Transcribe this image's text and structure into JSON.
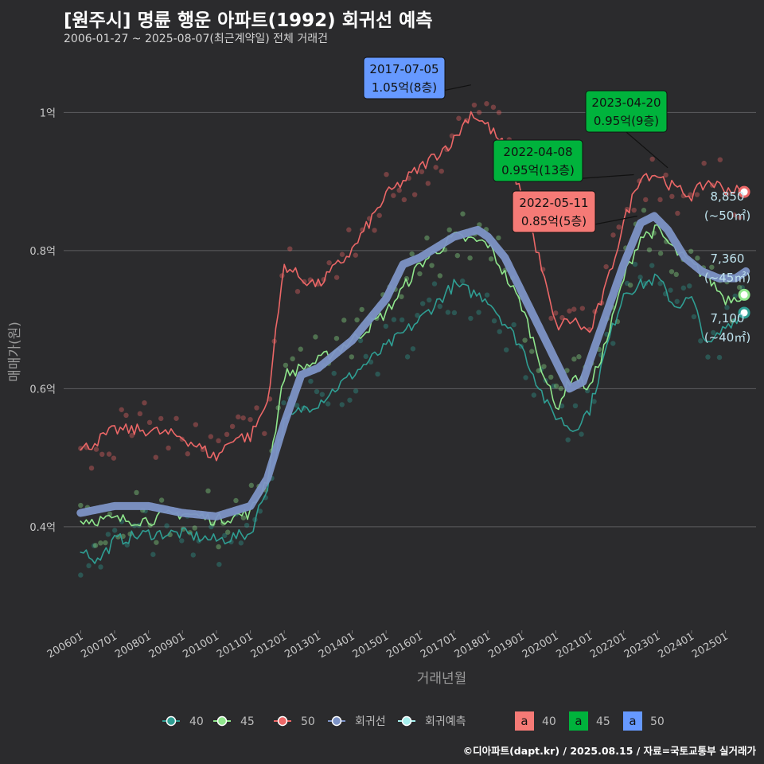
{
  "title": "[원주시] 명륜 행운 아파트(1992) 회귀선 예측",
  "subtitle": "2006-01-27 ~ 2025-08-07(최근계약일) 전체 거래건",
  "footer": "©디아파트(dapt.kr) / 2025.08.15 / 자료=국토교통부 실거래가",
  "chart_data": {
    "type": "line",
    "xlabel": "거래년월",
    "ylabel": "매매가(원)",
    "x_ticks": [
      "200601",
      "200701",
      "200801",
      "200901",
      "201001",
      "201101",
      "201201",
      "201301",
      "201401",
      "201501",
      "201601",
      "201701",
      "201801",
      "201901",
      "202001",
      "202101",
      "202201",
      "202301",
      "202401",
      "202501"
    ],
    "y_ticks": [
      "0.4억",
      "0.6억",
      "0.8억",
      "1억"
    ],
    "ylim": [
      0.25,
      1.08
    ],
    "xlim": [
      2005.5,
      2025.9
    ],
    "colors": {
      "s40": "#2f9e93",
      "s45": "#8fe68c",
      "s50": "#ec6767",
      "reg": "#7d93c6",
      "pred": "#a7f0ee"
    },
    "series": [
      {
        "name": "40",
        "color": "#2f9e93",
        "points": [
          [
            2006.0,
            0.37
          ],
          [
            2006.5,
            0.35
          ],
          [
            2007.0,
            0.38
          ],
          [
            2008.0,
            0.39
          ],
          [
            2009.0,
            0.39
          ],
          [
            2010.0,
            0.38
          ],
          [
            2011.0,
            0.39
          ],
          [
            2011.5,
            0.46
          ],
          [
            2012.0,
            0.55
          ],
          [
            2012.5,
            0.57
          ],
          [
            2013.0,
            0.58
          ],
          [
            2014.0,
            0.62
          ],
          [
            2015.0,
            0.66
          ],
          [
            2016.0,
            0.7
          ],
          [
            2017.0,
            0.75
          ],
          [
            2018.0,
            0.73
          ],
          [
            2019.0,
            0.66
          ],
          [
            2019.8,
            0.57
          ],
          [
            2020.5,
            0.54
          ],
          [
            2021.0,
            0.57
          ],
          [
            2021.5,
            0.66
          ],
          [
            2022.0,
            0.74
          ],
          [
            2023.0,
            0.76
          ],
          [
            2023.5,
            0.72
          ],
          [
            2024.0,
            0.73
          ],
          [
            2024.5,
            0.66
          ],
          [
            2025.0,
            0.69
          ],
          [
            2025.5,
            0.71
          ]
        ]
      },
      {
        "name": "45",
        "color": "#8fe68c",
        "points": [
          [
            2006.0,
            0.41
          ],
          [
            2007.0,
            0.41
          ],
          [
            2008.0,
            0.41
          ],
          [
            2009.0,
            0.42
          ],
          [
            2010.0,
            0.41
          ],
          [
            2011.0,
            0.42
          ],
          [
            2011.5,
            0.47
          ],
          [
            2012.0,
            0.62
          ],
          [
            2012.5,
            0.63
          ],
          [
            2013.0,
            0.64
          ],
          [
            2014.0,
            0.67
          ],
          [
            2015.0,
            0.71
          ],
          [
            2016.0,
            0.78
          ],
          [
            2016.5,
            0.8
          ],
          [
            2017.0,
            0.82
          ],
          [
            2018.0,
            0.81
          ],
          [
            2019.0,
            0.72
          ],
          [
            2020.0,
            0.57
          ],
          [
            2020.5,
            0.62
          ],
          [
            2021.0,
            0.6
          ],
          [
            2021.5,
            0.67
          ],
          [
            2022.0,
            0.76
          ],
          [
            2022.5,
            0.82
          ],
          [
            2023.0,
            0.83
          ],
          [
            2023.5,
            0.8
          ],
          [
            2024.0,
            0.78
          ],
          [
            2024.5,
            0.76
          ],
          [
            2025.0,
            0.73
          ],
          [
            2025.5,
            0.736
          ]
        ]
      },
      {
        "name": "50",
        "color": "#ec6767",
        "points": [
          [
            2006.0,
            0.51
          ],
          [
            2007.0,
            0.54
          ],
          [
            2008.0,
            0.54
          ],
          [
            2009.0,
            0.53
          ],
          [
            2010.0,
            0.5
          ],
          [
            2010.5,
            0.53
          ],
          [
            2011.0,
            0.53
          ],
          [
            2011.5,
            0.58
          ],
          [
            2012.0,
            0.78
          ],
          [
            2012.5,
            0.76
          ],
          [
            2013.0,
            0.75
          ],
          [
            2014.0,
            0.8
          ],
          [
            2015.0,
            0.88
          ],
          [
            2016.0,
            0.92
          ],
          [
            2017.0,
            0.96
          ],
          [
            2017.5,
            1.0
          ],
          [
            2018.0,
            0.98
          ],
          [
            2018.5,
            0.95
          ],
          [
            2019.0,
            0.88
          ],
          [
            2019.5,
            0.79
          ],
          [
            2020.0,
            0.69
          ],
          [
            2020.5,
            0.7
          ],
          [
            2021.0,
            0.68
          ],
          [
            2021.5,
            0.75
          ],
          [
            2022.0,
            0.84
          ],
          [
            2022.5,
            0.91
          ],
          [
            2023.0,
            0.91
          ],
          [
            2023.5,
            0.89
          ],
          [
            2024.0,
            0.88
          ],
          [
            2024.5,
            0.9
          ],
          [
            2025.0,
            0.89
          ],
          [
            2025.5,
            0.885
          ]
        ]
      },
      {
        "name": "회귀선",
        "color": "#7d93c6",
        "points": [
          [
            2006.0,
            0.42
          ],
          [
            2007.0,
            0.43
          ],
          [
            2008.0,
            0.43
          ],
          [
            2009.0,
            0.42
          ],
          [
            2010.0,
            0.415
          ],
          [
            2011.0,
            0.43
          ],
          [
            2011.5,
            0.47
          ],
          [
            2012.0,
            0.55
          ],
          [
            2012.5,
            0.62
          ],
          [
            2013.0,
            0.63
          ],
          [
            2014.0,
            0.67
          ],
          [
            2015.0,
            0.73
          ],
          [
            2015.5,
            0.78
          ],
          [
            2016.0,
            0.79
          ],
          [
            2017.0,
            0.82
          ],
          [
            2017.7,
            0.83
          ],
          [
            2018.0,
            0.82
          ],
          [
            2018.5,
            0.79
          ],
          [
            2019.0,
            0.74
          ],
          [
            2019.5,
            0.69
          ],
          [
            2020.0,
            0.64
          ],
          [
            2020.4,
            0.6
          ],
          [
            2020.8,
            0.61
          ],
          [
            2021.0,
            0.64
          ],
          [
            2021.5,
            0.71
          ],
          [
            2022.0,
            0.78
          ],
          [
            2022.5,
            0.84
          ],
          [
            2022.9,
            0.85
          ],
          [
            2023.3,
            0.83
          ],
          [
            2023.8,
            0.79
          ],
          [
            2024.3,
            0.77
          ],
          [
            2024.8,
            0.76
          ],
          [
            2025.3,
            0.76
          ],
          [
            2025.6,
            0.77
          ]
        ]
      }
    ],
    "end_labels": [
      {
        "value": "8,850",
        "sub": "(~50㎡)",
        "y": 0.885,
        "color": "#ec6767"
      },
      {
        "value": "7,360",
        "sub": "(~45㎡)",
        "y": 0.736,
        "color": "#8fe68c"
      },
      {
        "value": "7,100",
        "sub": "(~40㎡)",
        "y": 0.71,
        "color": "#2f9e93"
      }
    ],
    "annotations": [
      {
        "date": "2017-07-05",
        "price": "1.05억(8층)",
        "color": "#6699ff"
      },
      {
        "date": "2023-04-20",
        "price": "0.95억(9층)",
        "color": "#00b33c"
      },
      {
        "date": "2022-04-08",
        "price": "0.95억(13층)",
        "color": "#00b33c"
      },
      {
        "date": "2022-05-11",
        "price": "0.85억(5층)",
        "color": "#f57a76"
      }
    ],
    "legend_lines": [
      {
        "label": "40",
        "color": "#2f9e93"
      },
      {
        "label": "45",
        "color": "#8fe68c"
      },
      {
        "label": "50",
        "color": "#ec6767"
      },
      {
        "label": "회귀선",
        "color": "#7d93c6"
      },
      {
        "label": "회귀예측",
        "color": "#a7f0ee"
      }
    ],
    "legend_boxes": [
      {
        "glyph": "a",
        "label": "40",
        "color": "#f57a76"
      },
      {
        "glyph": "a",
        "label": "45",
        "color": "#00b33c"
      },
      {
        "glyph": "a",
        "label": "50",
        "color": "#6699ff"
      }
    ],
    "legend_position": "bottom",
    "grid": true
  }
}
